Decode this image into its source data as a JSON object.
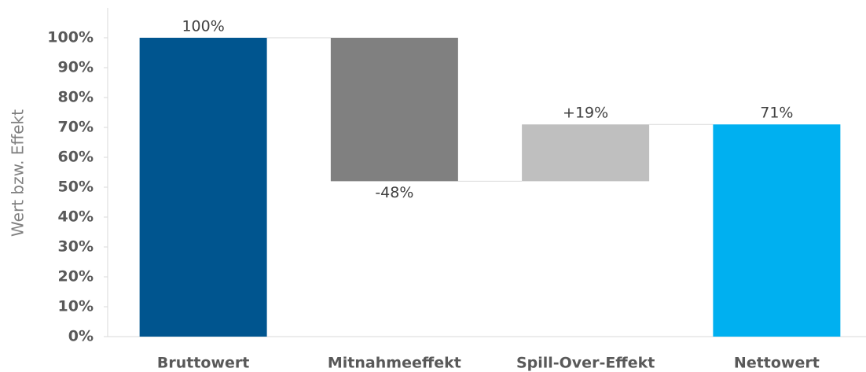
{
  "chart_data": {
    "type": "waterfall",
    "y_label": "Wert bzw. Effekt",
    "categories": [
      "Bruttowert",
      "Mitnahmeeffekt",
      "Spill-Over-Effekt",
      "Nettowert"
    ],
    "values": [
      100,
      -48,
      19,
      71
    ],
    "value_labels": [
      "100%",
      "-48%",
      "+19%",
      "71%"
    ],
    "measure": [
      "absolute",
      "relative",
      "relative",
      "total"
    ],
    "colors": [
      "#00558f",
      "#808080",
      "#bfbfbf",
      "#00b0f0"
    ],
    "ylim": [
      0,
      110
    ],
    "yticks": [
      {
        "value": 0,
        "label": "0%"
      },
      {
        "value": 10,
        "label": "10%"
      },
      {
        "value": 20,
        "label": "20%"
      },
      {
        "value": 30,
        "label": "30%"
      },
      {
        "value": 40,
        "label": "40%"
      },
      {
        "value": 50,
        "label": "50%"
      },
      {
        "value": 60,
        "label": "60%"
      },
      {
        "value": 70,
        "label": "70%"
      },
      {
        "value": 80,
        "label": "80%"
      },
      {
        "value": 90,
        "label": "90%"
      },
      {
        "value": 100,
        "label": "100%"
      }
    ],
    "grid": false
  }
}
